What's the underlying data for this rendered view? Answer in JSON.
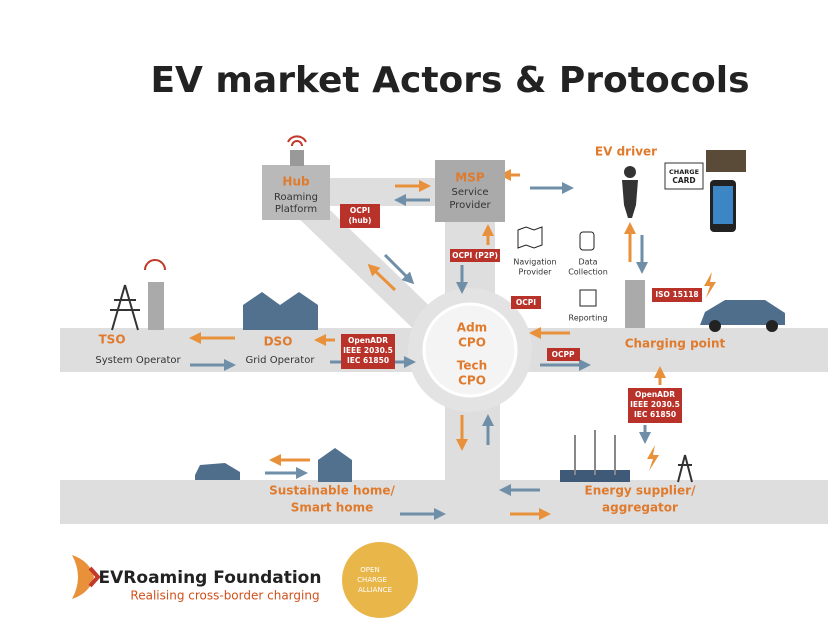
{
  "title": "EV market Actors & Protocols",
  "actors": [
    {
      "name": "Hub",
      "description": [
        "Roaming",
        "Platform"
      ]
    },
    {
      "name": "MSP",
      "description": [
        "Service",
        "Provider"
      ]
    },
    {
      "name": "EV driver"
    },
    {
      "name": "TSO",
      "description": [
        "System Operator"
      ]
    },
    {
      "name": "DSO",
      "description": [
        "Grid Operator"
      ]
    },
    {
      "name": "Charging point"
    },
    {
      "name": [
        "Sustainable home/",
        "Smart home"
      ]
    },
    {
      "name": [
        "Energy supplier/",
        "aggregator"
      ]
    }
  ],
  "cpo": {
    "adm": [
      "Adm",
      "CPO"
    ],
    "tech": [
      "Tech",
      "CPO"
    ]
  },
  "charge_card": [
    "CHARGE",
    "CARD"
  ],
  "services": [
    [
      "Navigation",
      "Provider"
    ],
    [
      "Data",
      "Collection"
    ],
    [
      "Reporting"
    ]
  ],
  "protocols": {
    "ocpi_hub": [
      "OCPI",
      "(hub)"
    ],
    "ocpi_p2p": [
      "OCPI (P2P)"
    ],
    "ocpi": [
      "OCPI"
    ],
    "iso": [
      "ISO 15118"
    ],
    "openadr_dso": [
      "OpenADR",
      "IEEE 2030.5",
      "IEC 61850"
    ],
    "ocpp": [
      "OCPP"
    ],
    "openadr_energy": [
      "OpenADR",
      "IEEE 2030.5",
      "IEC 61850"
    ]
  },
  "footer": {
    "org": "EVRoaming Foundation",
    "tagline": "Realising cross-border charging",
    "partner": [
      "OPEN",
      "CHARGE",
      "ALLIANCE"
    ]
  }
}
